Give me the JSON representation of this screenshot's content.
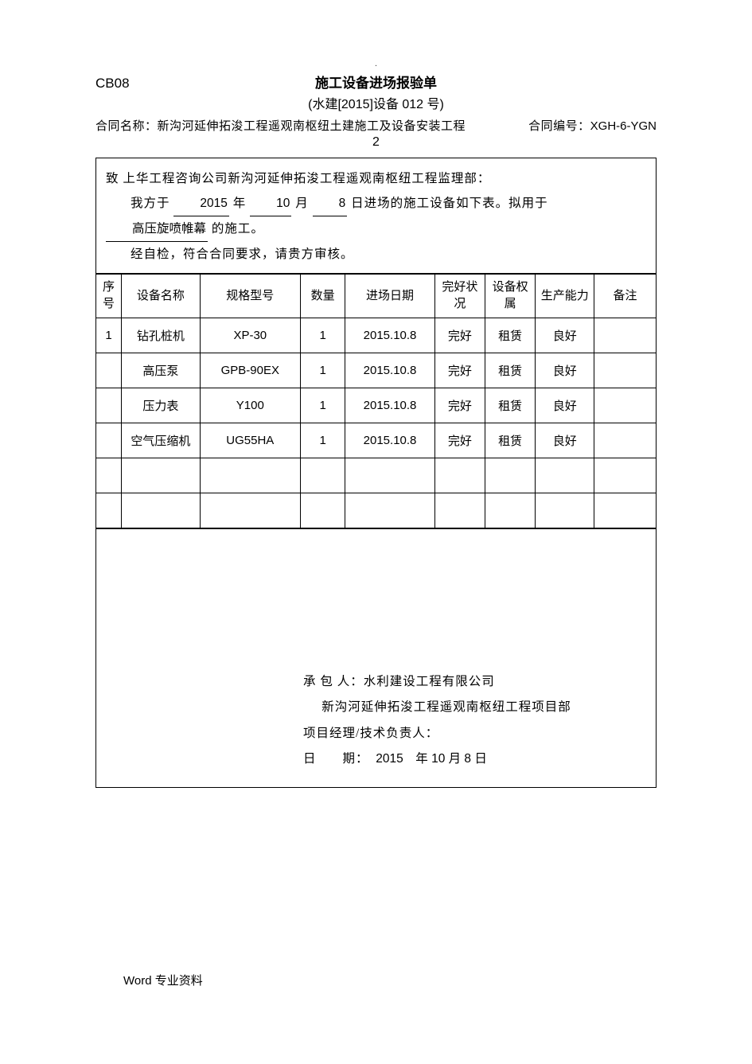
{
  "top_mark": ".",
  "form_code": "CB08",
  "title": "施工设备进场报验单",
  "subtitle": "(水建[2015]设备 012 号)",
  "contract": {
    "name_label": "合同名称：",
    "name_value": "新沟河延伸拓浚工程遥观南枢纽土建施工及设备安装工程",
    "num_label": "合同编号：",
    "num_value": "XGH-6-YGN"
  },
  "line2": "2",
  "intro": {
    "to": "致 上华工程咨询公司新沟河延伸拓浚工程遥观南枢纽工程监理部：",
    "l1_pre": "我方于",
    "year": "2015",
    "yl": "年",
    "month": "10",
    "ml": "月",
    "day": "8",
    "dl": "日进场的施工设备如下表。拟用于",
    "purpose": "高压旋喷帷幕",
    "dl2": "的施工。",
    "l2": "经自检，符合合同要求，请贵方审核。"
  },
  "table": {
    "headers": {
      "seq": "序号",
      "name": "设备名称",
      "spec": "规格型号",
      "qty": "数量",
      "date": "进场日期",
      "condition": "完好状况",
      "ownership": "设备权属",
      "capacity": "生产能力",
      "note": "备注"
    },
    "rows": [
      {
        "seq": "1",
        "name": "钻孔桩机",
        "spec": "XP-30",
        "qty": "1",
        "date": "2015.10.8",
        "condition": "完好",
        "ownership": "租赁",
        "capacity": "良好",
        "note": ""
      },
      {
        "seq": "",
        "name": "高压泵",
        "spec": "GPB-90EX",
        "qty": "1",
        "date": "2015.10.8",
        "condition": "完好",
        "ownership": "租赁",
        "capacity": "良好",
        "note": ""
      },
      {
        "seq": "",
        "name": "压力表",
        "spec": "Y100",
        "qty": "1",
        "date": "2015.10.8",
        "condition": "完好",
        "ownership": "租赁",
        "capacity": "良好",
        "note": ""
      },
      {
        "seq": "",
        "name": "空气压缩机",
        "spec": "UG55HA",
        "qty": "1",
        "date": "2015.10.8",
        "condition": "完好",
        "ownership": "租赁",
        "capacity": "良好",
        "note": ""
      },
      {
        "seq": "",
        "name": "",
        "spec": "",
        "qty": "",
        "date": "",
        "condition": "",
        "ownership": "",
        "capacity": "",
        "note": ""
      },
      {
        "seq": "",
        "name": "",
        "spec": "",
        "qty": "",
        "date": "",
        "condition": "",
        "ownership": "",
        "capacity": "",
        "note": ""
      }
    ]
  },
  "footer": {
    "l1_label": "承 包 人：",
    "l1_value": "水利建设工程有限公司",
    "l2": "新沟河延伸拓浚工程遥观南枢纽工程项目部",
    "l3": "项目经理/技术负责人：",
    "l4_label": "日　　期：",
    "l4_value": "2015　年 10 月 8 日"
  },
  "bottom_note": "Word 专业资料"
}
